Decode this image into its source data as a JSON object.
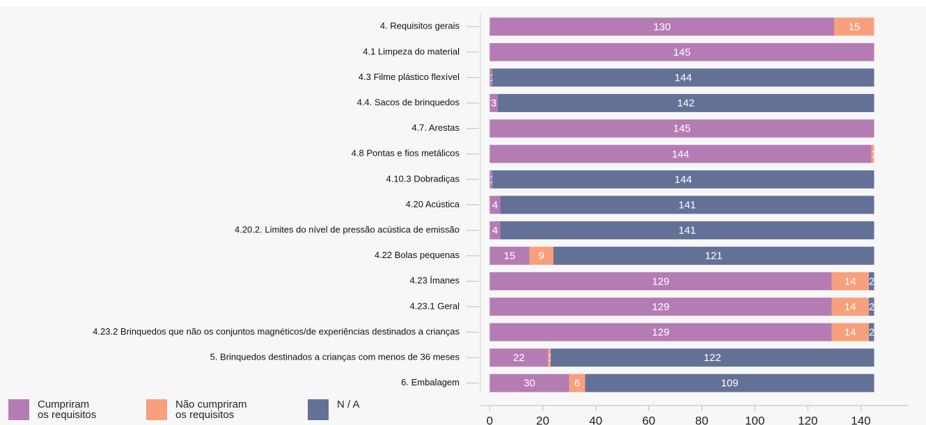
{
  "chart_data": {
    "type": "stacked-bar-horizontal",
    "categories": [
      "4. Requisitos gerais",
      "4.1 Limpeza do material",
      "4.3 Filme plástico flexível",
      "4.4. Sacos de brinquedos",
      "4.7. Arestas",
      "4.8 Pontas e fios metálicos",
      "4.10.3 Dobradiças",
      "4.20 Acústica",
      "4.20.2. Limites do nível de pressão acústica de emissão",
      "4.22 Bolas pequenas",
      "4.23 Ímanes",
      "4.23.1 Geral",
      "4.23.2 Brinquedos que não os conjuntos magnéticos/de experiências destinados a crianças",
      "5. Brinquedos destinados a crianças com menos de 36 meses",
      "6. Embalagem"
    ],
    "series": [
      {
        "name": "Cumpriram\nos requisitos",
        "color": "#b57cb4",
        "values": [
          130,
          145,
          1,
          3,
          145,
          144,
          1,
          4,
          4,
          15,
          129,
          129,
          129,
          22,
          30
        ]
      },
      {
        "name": "Não cumpriram\nos requisitos",
        "color": "#f7a07b",
        "values": [
          15,
          0,
          0,
          0,
          0,
          1,
          0,
          0,
          0,
          9,
          14,
          14,
          14,
          1,
          6
        ]
      },
      {
        "name": "N / A",
        "color": "#647197",
        "values": [
          0,
          0,
          144,
          142,
          0,
          0,
          144,
          141,
          141,
          121,
          2,
          2,
          2,
          122,
          109
        ]
      }
    ],
    "xlim": [
      -3.5,
      158
    ],
    "xticks": [
      0,
      20,
      40,
      60,
      80,
      100,
      120,
      140
    ]
  }
}
